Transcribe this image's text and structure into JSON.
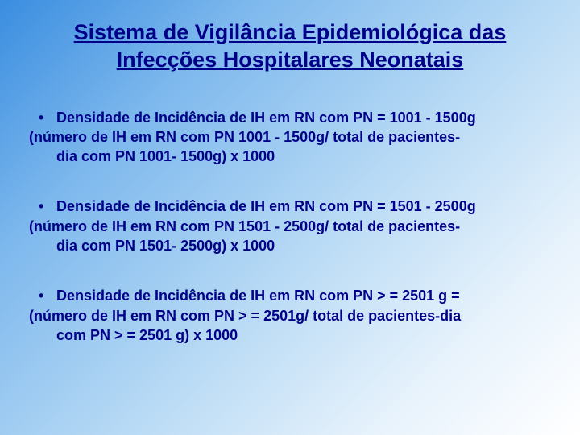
{
  "title": "Sistema de Vigilância Epidemiológica das Infecções Hospitalares Neonatais",
  "bullets": [
    {
      "line1": "Densidade de Incidência de IH em RN com PN = 1001 - 1500g",
      "line2": "(número de IH em RN com PN 1001 - 1500g/ total de pacientes-dia com PN 1001- 1500g) x 1000"
    },
    {
      "line1": "Densidade de Incidência de IH em RN com PN = 1501 - 2500g",
      "line2": "(número de IH em RN com PN 1501 - 2500g/ total de pacientes-dia com PN 1501- 2500g) x 1000"
    },
    {
      "line1": "Densidade de Incidência de IH em RN com PN > = 2501 g =",
      "line2": "(número de IH em RN com PN > = 2501g/ total de pacientes-dia com PN > = 2501 g) x 1000"
    }
  ],
  "colors": {
    "text": "#000088",
    "gradient_start": "#3a8de0",
    "gradient_end": "#ffffff"
  },
  "fonts": {
    "title_family": "Comic Sans MS",
    "body_family": "Arial",
    "title_size_pt": 20,
    "body_size_pt": 14
  }
}
